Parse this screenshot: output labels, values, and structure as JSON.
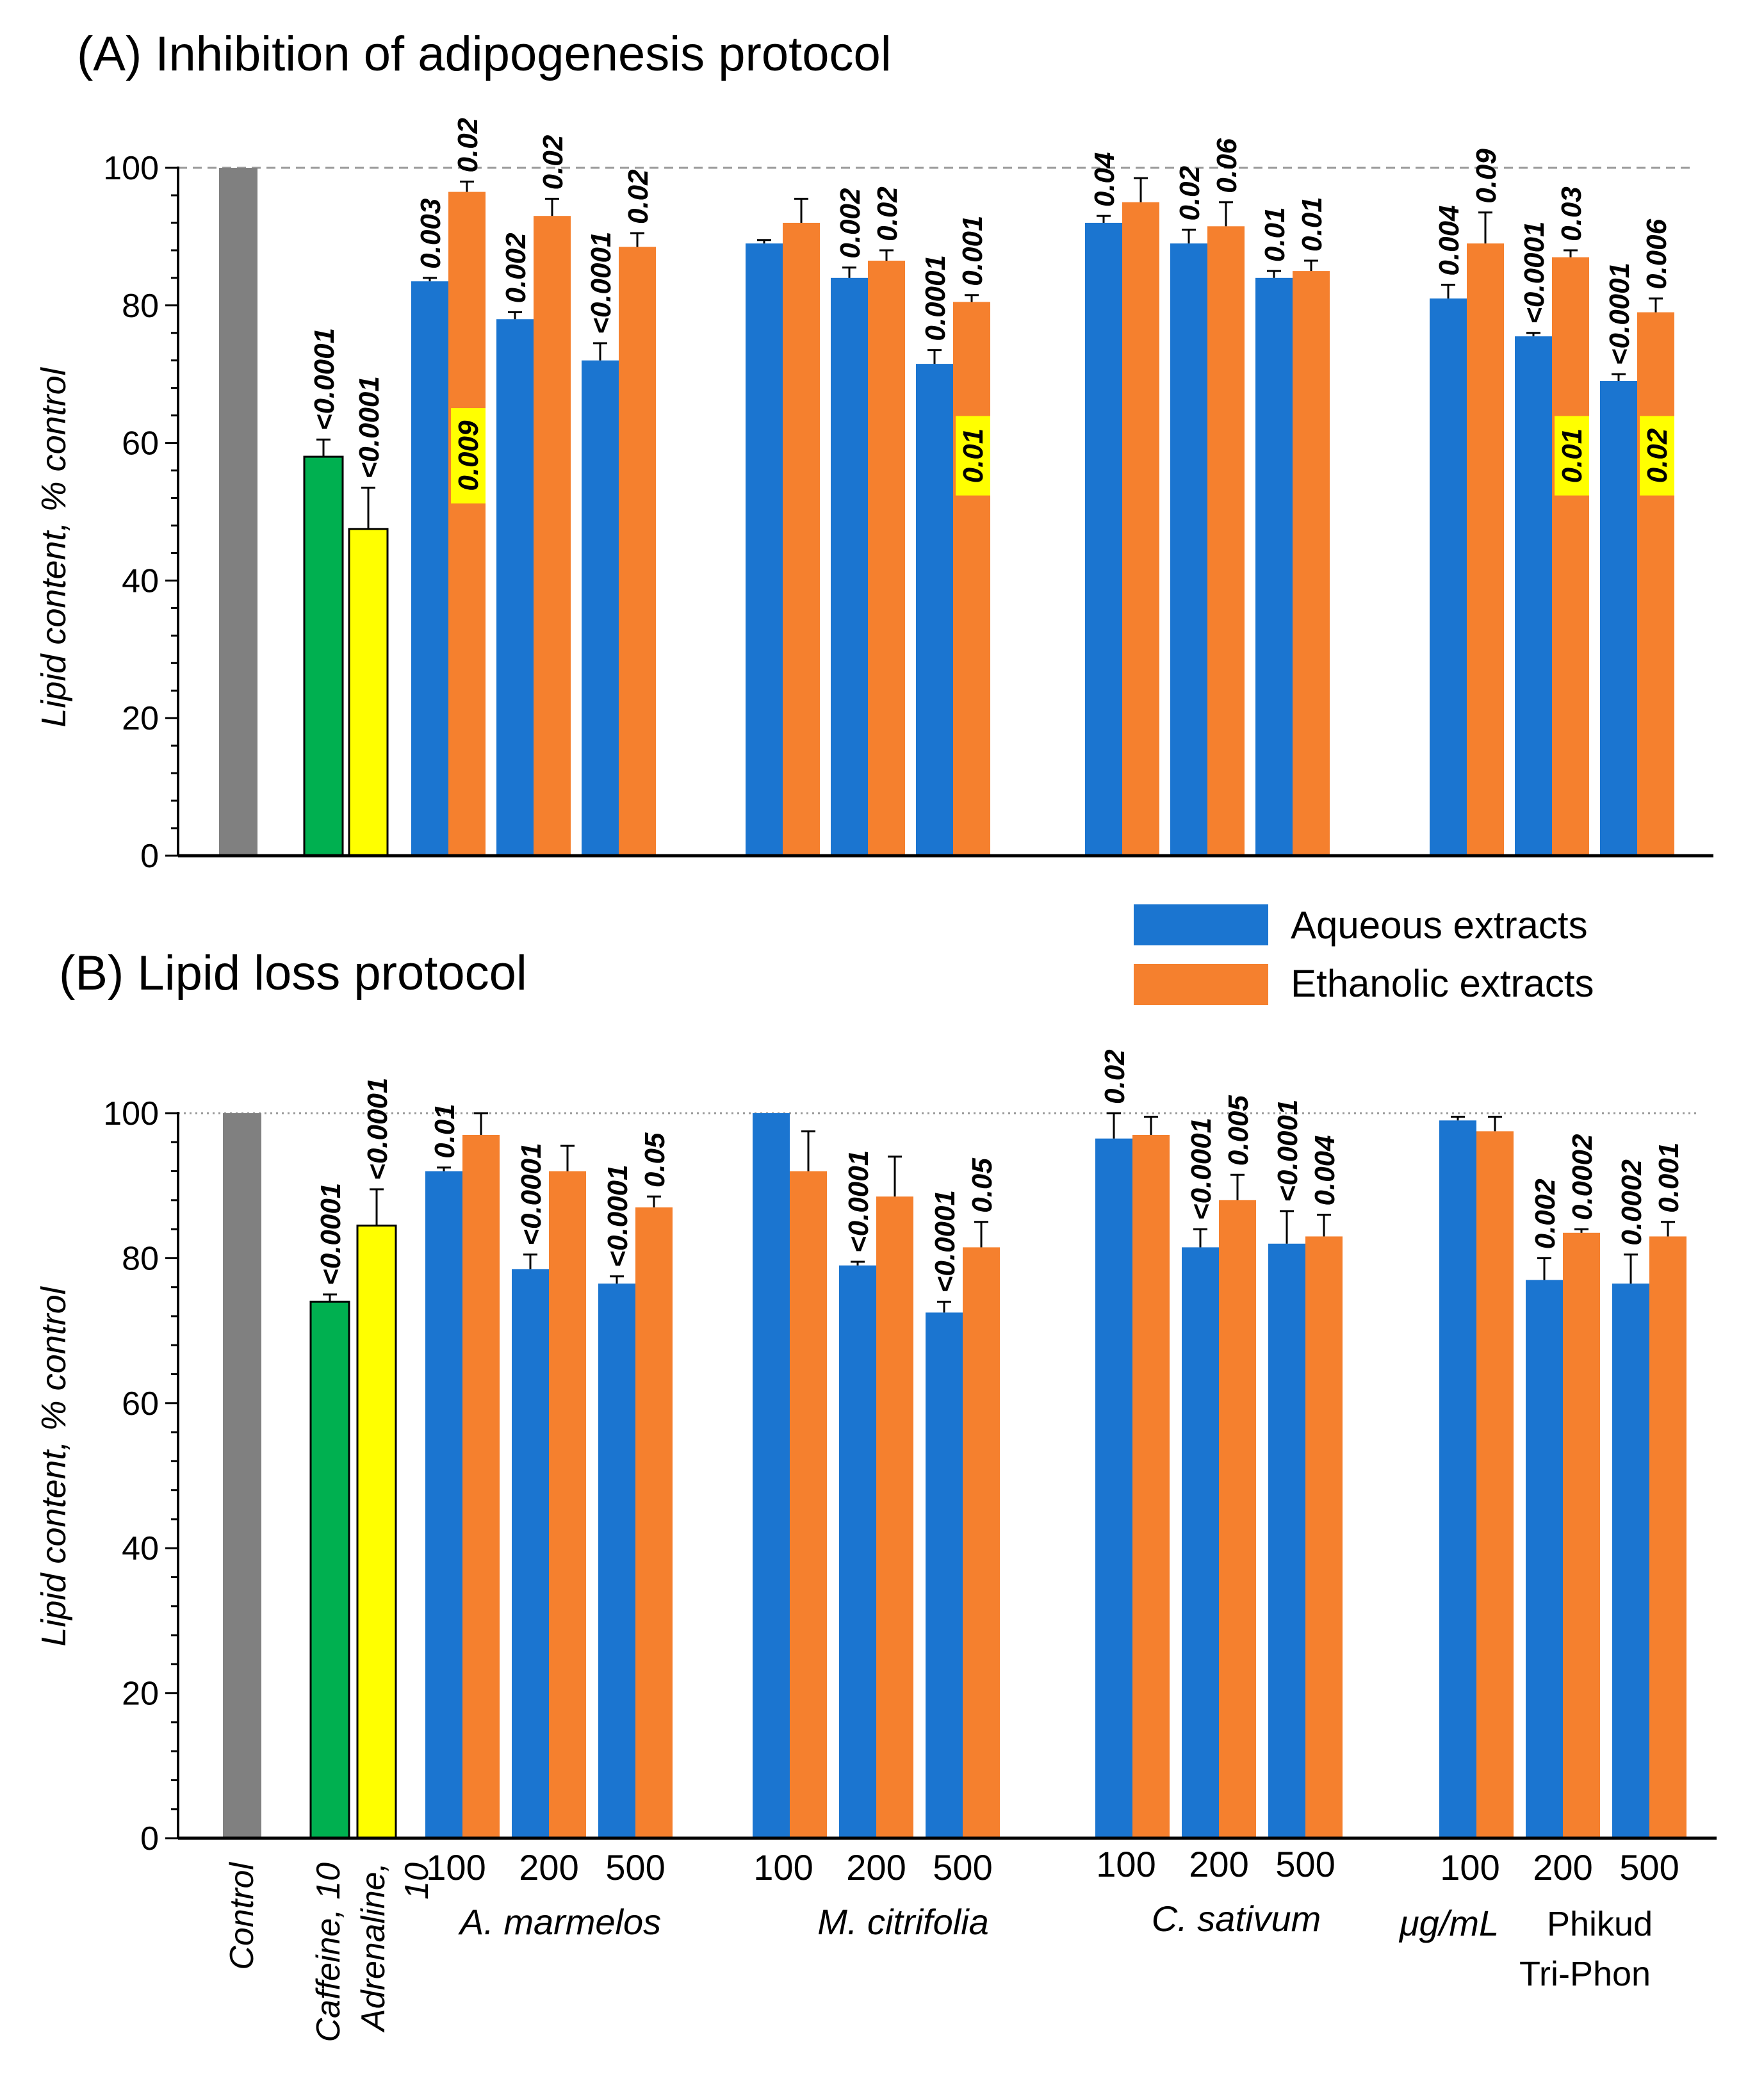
{
  "colors": {
    "control": "#808080",
    "caffeine": "#00b050",
    "adrenaline": "#ffff00",
    "aqueous": "#1b75d0",
    "ethanolic": "#f5802e",
    "highlight": "#ffff00",
    "axis": "#000000"
  },
  "legend": {
    "aqueous": "Aqueous extracts",
    "ethanolic": "Ethanolic extracts"
  },
  "x_labels": {
    "control": "Control",
    "caffeine": "Caffeine, 10",
    "adrenaline_line1": "Adrenaline,",
    "adrenaline_line2": "10",
    "concentrations": [
      "100",
      "200",
      "500"
    ],
    "groups": [
      "A. marmelos",
      "M. citrifolia",
      "C. sativum"
    ],
    "unit": "μg/mL",
    "group4_line1": "Phikud",
    "group4_line2": "Tri-Phon"
  },
  "chart_data": [
    {
      "type": "bar",
      "title": "(A) Inhibition of adipogenesis protocol",
      "ylabel": "Lipid content, % control",
      "ylim": [
        0,
        100
      ],
      "yticks": [
        "0",
        "20",
        "40",
        "60",
        "80",
        "100"
      ],
      "reference_line": 100,
      "reference_style": "dashed",
      "controls": [
        {
          "name": "Control",
          "value": 100,
          "err": 0,
          "p": ""
        },
        {
          "name": "Caffeine, 10",
          "value": 58,
          "err": 2.5,
          "p": "<0.0001"
        },
        {
          "name": "Adrenaline, 10",
          "value": 47.5,
          "err": 6,
          "p": "<0.0001"
        }
      ],
      "categories": [
        "A. marmelos",
        "M. citrifolia",
        "C. sativum",
        "Phikud Tri-Phon"
      ],
      "concentrations": [
        "100",
        "200",
        "500"
      ],
      "series": [
        {
          "name": "Aqueous extracts",
          "values": [
            [
              83.5,
              78,
              72
            ],
            [
              89,
              84,
              71.5
            ],
            [
              92,
              89,
              84
            ],
            [
              81,
              75.5,
              69
            ]
          ],
          "err": [
            [
              0.5,
              1,
              2.5
            ],
            [
              0.5,
              1.5,
              2
            ],
            [
              1,
              2,
              1
            ],
            [
              2,
              0.5,
              1
            ]
          ],
          "p": [
            [
              "0.003",
              "0.002",
              "<0.0001"
            ],
            [
              "",
              "0.002",
              "0.0001"
            ],
            [
              "0.04",
              "0.02",
              "0.01"
            ],
            [
              "0.004",
              "<0.0001",
              "<0.0001"
            ]
          ]
        },
        {
          "name": "Ethanolic extracts",
          "values": [
            [
              96.5,
              93,
              88.5
            ],
            [
              92,
              86.5,
              80.5
            ],
            [
              95,
              91.5,
              85
            ],
            [
              89,
              87,
              79
            ]
          ],
          "err": [
            [
              1.5,
              2.5,
              2
            ],
            [
              3.5,
              1.5,
              1
            ],
            [
              3.5,
              3.5,
              1.5
            ],
            [
              4.5,
              1,
              2
            ]
          ],
          "p": [
            [
              "0.02",
              "0.02",
              "0.02"
            ],
            [
              "",
              "0.02",
              "0.001"
            ],
            [
              "",
              "0.06",
              "0.01"
            ],
            [
              "0.09",
              "0.03",
              "0.006"
            ]
          ]
        }
      ],
      "highlighted_p": [
        {
          "category": "A. marmelos",
          "conc": "100",
          "value": "0.009"
        },
        {
          "category": "M. citrifolia",
          "conc": "500",
          "value": "0.01"
        },
        {
          "category": "Phikud Tri-Phon",
          "conc": "200",
          "value": "0.01"
        },
        {
          "category": "Phikud Tri-Phon",
          "conc": "500",
          "value": "0.02"
        }
      ]
    },
    {
      "type": "bar",
      "title": "(B) Lipid loss protocol",
      "ylabel": "Lipid content, % control",
      "ylim": [
        0,
        100
      ],
      "yticks": [
        "0",
        "20",
        "40",
        "60",
        "80",
        "100"
      ],
      "reference_line": 100,
      "reference_style": "dotted",
      "controls": [
        {
          "name": "Control",
          "value": 100,
          "err": 0,
          "p": ""
        },
        {
          "name": "Caffeine, 10",
          "value": 74,
          "err": 1,
          "p": "<0.0001"
        },
        {
          "name": "Adrenaline, 10",
          "value": 84.5,
          "err": 5,
          "p": "<0.0001"
        }
      ],
      "categories": [
        "A. marmelos",
        "M. citrifolia",
        "C. sativum",
        "Phikud Tri-Phon"
      ],
      "concentrations": [
        "100",
        "200",
        "500"
      ],
      "series": [
        {
          "name": "Aqueous extracts",
          "values": [
            [
              92,
              78.5,
              76.5
            ],
            [
              100,
              79,
              72.5
            ],
            [
              96.5,
              81.5,
              82
            ],
            [
              99,
              77,
              76.5
            ]
          ],
          "err": [
            [
              0.5,
              2,
              1
            ],
            [
              0,
              0.5,
              1.5
            ],
            [
              3.5,
              2.5,
              4.5
            ],
            [
              0.5,
              3,
              4
            ]
          ],
          "p": [
            [
              "0.01",
              "<0.0001",
              "<0.0001"
            ],
            [
              "",
              "<0.0001",
              "<0.0001"
            ],
            [
              "0.02",
              "<0.0001",
              "<0.0001"
            ],
            [
              "",
              "0.002",
              "0.0002"
            ]
          ]
        },
        {
          "name": "Ethanolic extracts",
          "values": [
            [
              97,
              92,
              87
            ],
            [
              92,
              88.5,
              81.5
            ],
            [
              97,
              88,
              83
            ],
            [
              97.5,
              83.5,
              83
            ]
          ],
          "err": [
            [
              3,
              3.5,
              1.5
            ],
            [
              5.5,
              5.5,
              3.5
            ],
            [
              2.5,
              3.5,
              3
            ],
            [
              2,
              0.5,
              2
            ]
          ],
          "p": [
            [
              "",
              "",
              "0.05"
            ],
            [
              "",
              "",
              "0.05"
            ],
            [
              "",
              "0.005",
              "0.004"
            ],
            [
              "",
              "0.0002",
              "0.001"
            ]
          ]
        }
      ],
      "highlighted_p": []
    }
  ]
}
